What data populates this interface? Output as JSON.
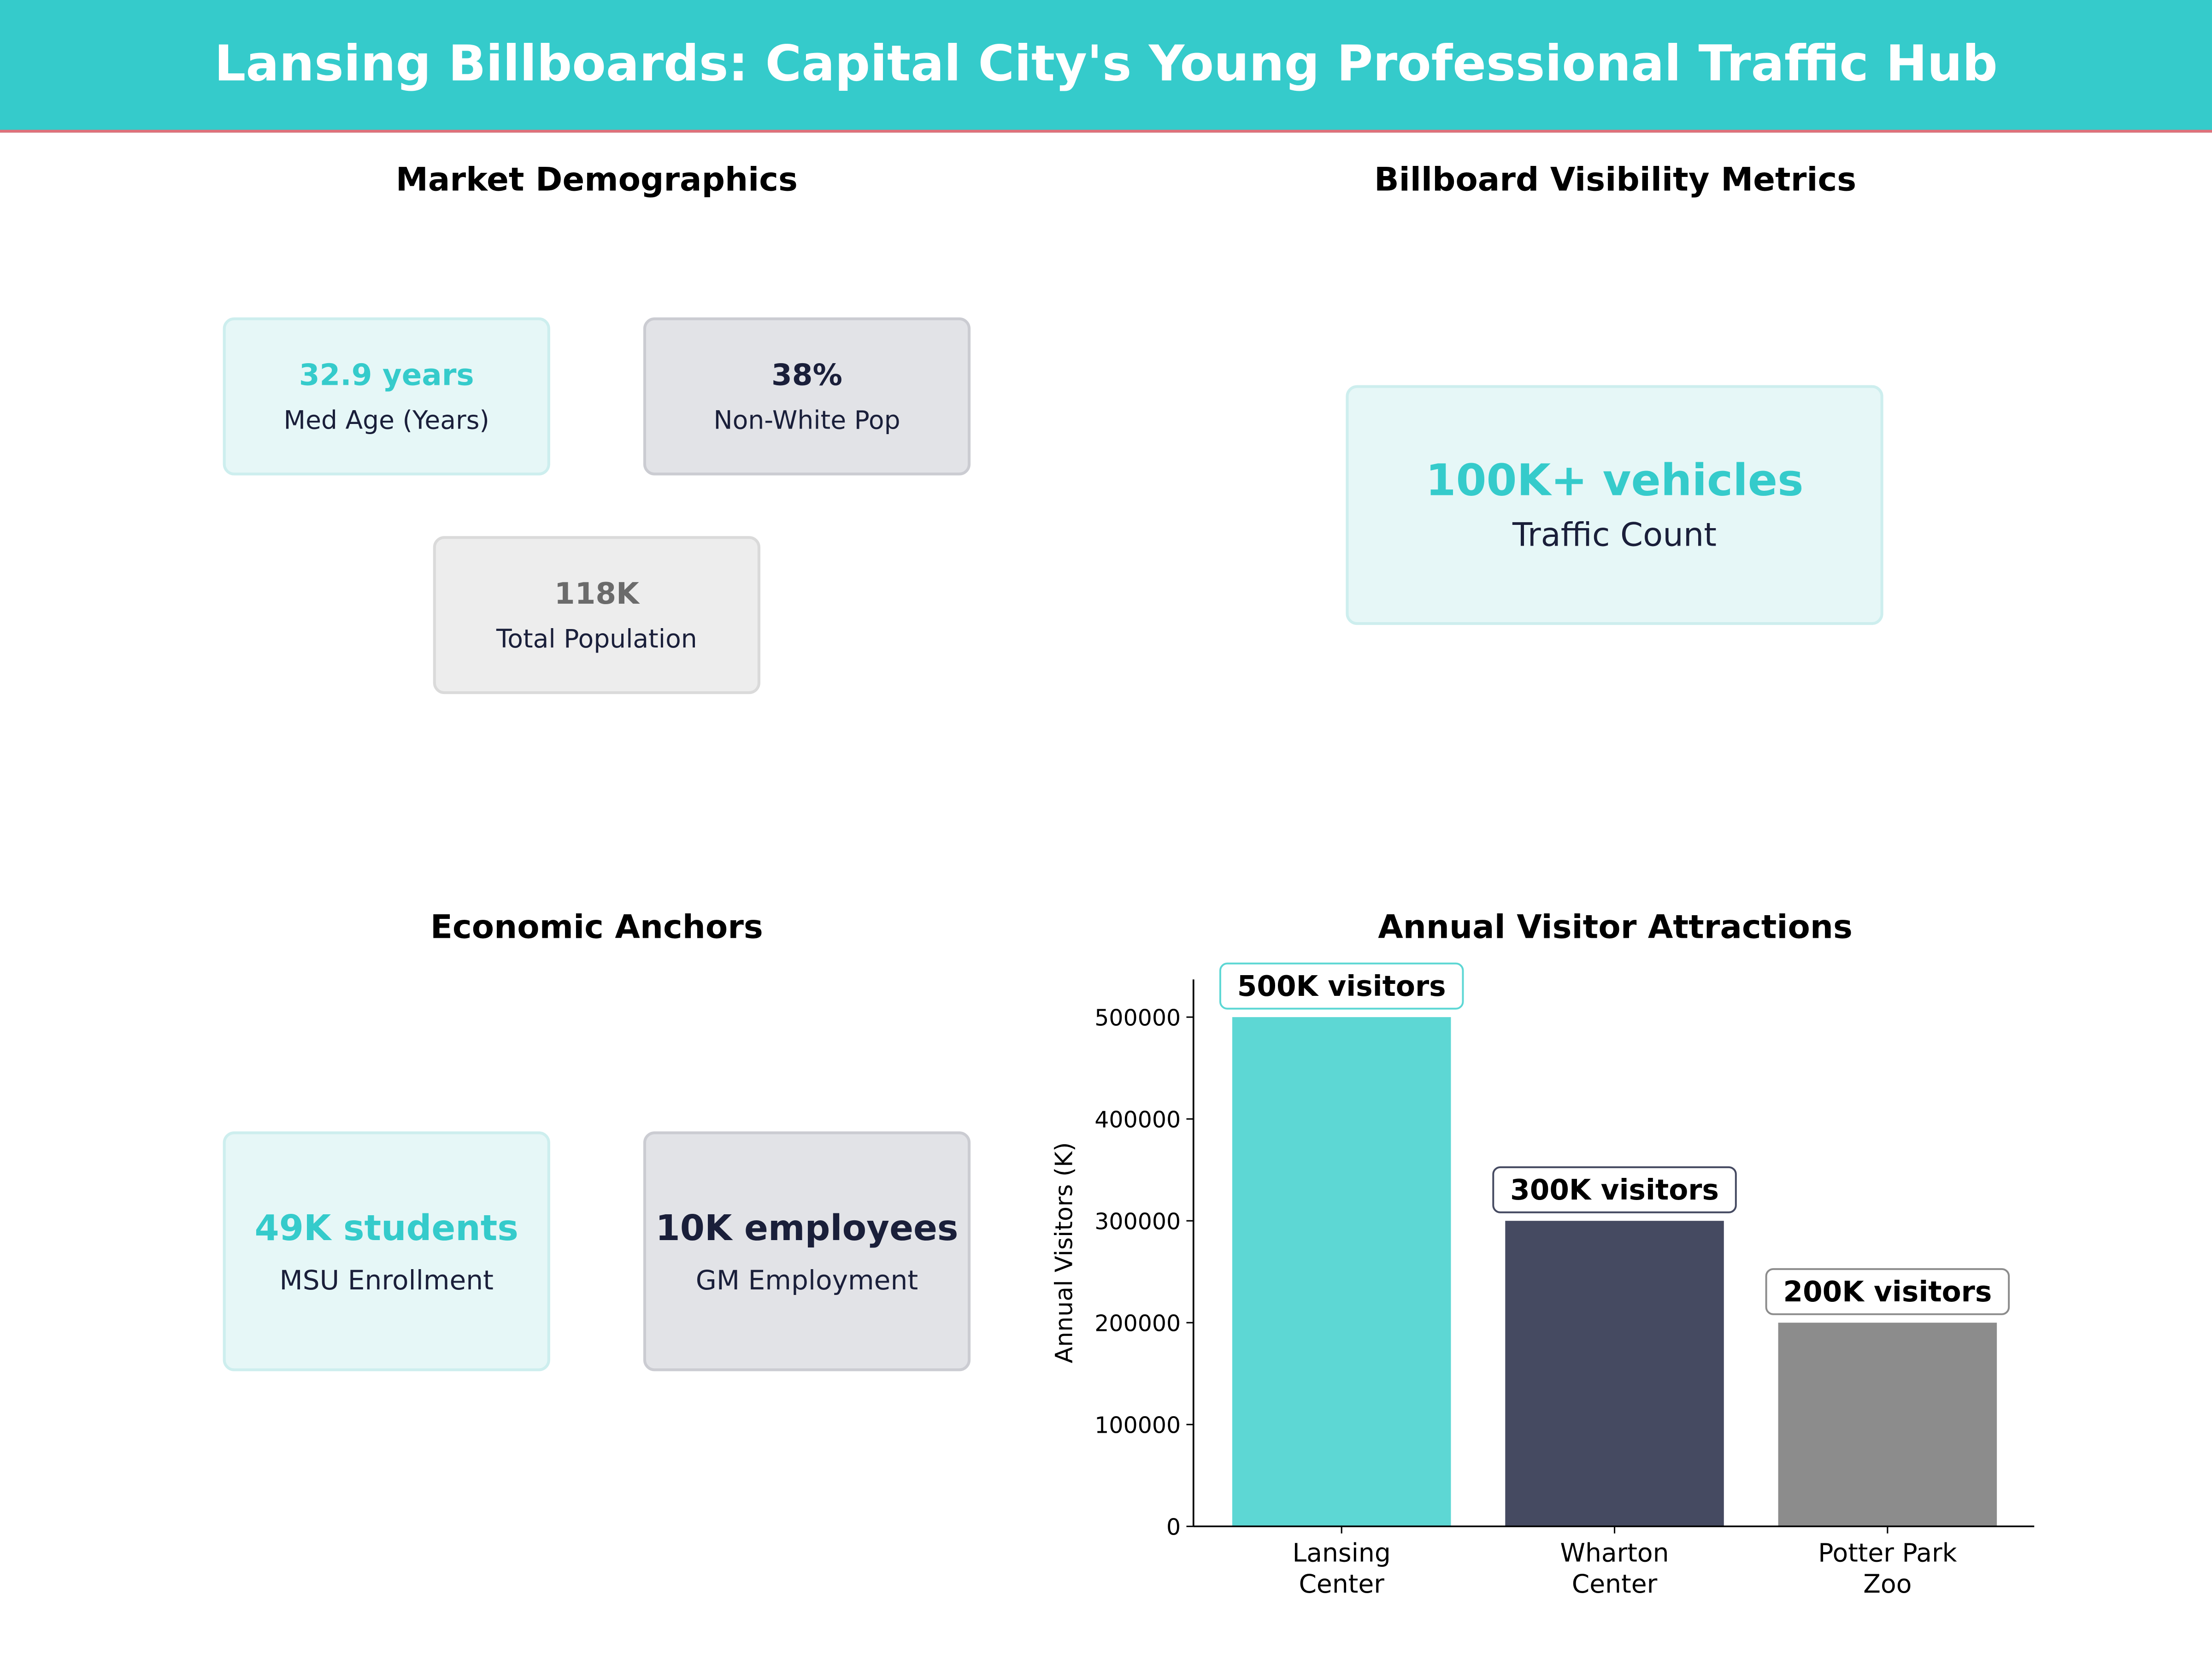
{
  "title": "Lansing Billboards: Capital City's Young Professional Traffic Hub",
  "colors": {
    "header": "#35cbcb",
    "accent": "#e0707a",
    "teal": "#5dd7d4",
    "navy": "#454a61",
    "grey": "#8c8c8c"
  },
  "demographics": {
    "title": "Market Demographics",
    "cards": [
      {
        "value": "32.9 years",
        "label": "Med Age (Years)"
      },
      {
        "value": "38%",
        "label": "Non-White Pop"
      },
      {
        "value": "118K",
        "label": "Total Population"
      }
    ]
  },
  "visibility": {
    "title": "Billboard Visibility Metrics",
    "card": {
      "value": "100K+ vehicles",
      "label": "Traffic Count"
    }
  },
  "economic": {
    "title": "Economic Anchors",
    "cards": [
      {
        "value": "49K students",
        "label": "MSU Enrollment"
      },
      {
        "value": "10K employees",
        "label": "GM Employment"
      }
    ]
  },
  "chart_data": {
    "type": "bar",
    "title": "Annual Visitor Attractions",
    "xlabel": "",
    "ylabel": "Annual Visitors (K)",
    "categories": [
      "Lansing\nCenter",
      "Wharton\nCenter",
      "Potter Park\nZoo"
    ],
    "values": [
      500000,
      300000,
      200000
    ],
    "data_labels": [
      "500K visitors",
      "300K visitors",
      "200K visitors"
    ],
    "bar_colors": [
      "#5dd7d4",
      "#454a61",
      "#8c8c8c"
    ],
    "label_border_colors": [
      "#5dd7d4",
      "#454a61",
      "#8c8c8c"
    ],
    "yticks": [
      0,
      100000,
      200000,
      300000,
      400000,
      500000
    ],
    "ylim": [
      0,
      537000
    ],
    "grid": false
  }
}
